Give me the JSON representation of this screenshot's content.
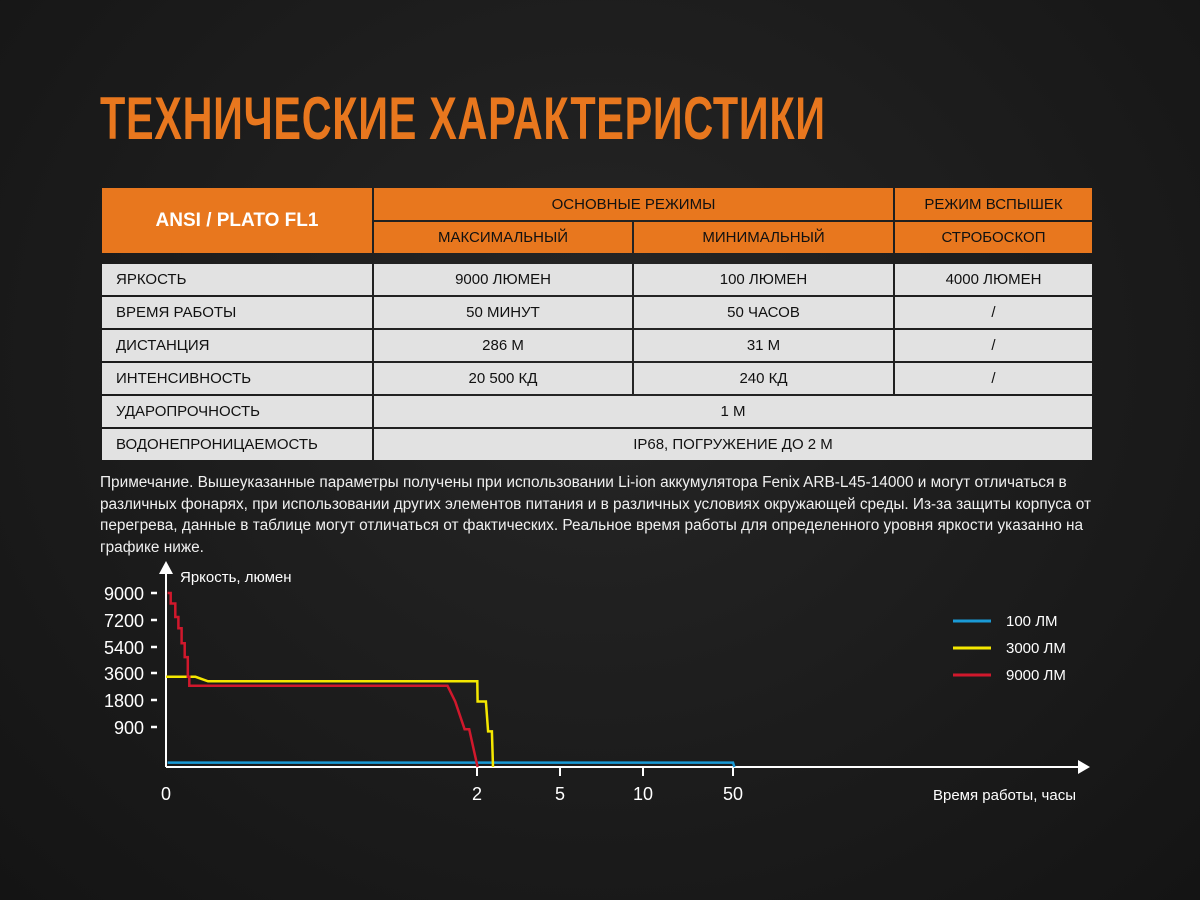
{
  "title": "ТЕХНИЧЕСКИЕ ХАРАКТЕРИСТИКИ",
  "table": {
    "brand": "ANSI / PLATO FL1",
    "group_main": "ОСНОВНЫЕ РЕЖИМЫ",
    "group_flash": "РЕЖИМ ВСПЫШЕК",
    "col_max": "МАКСИМАЛЬНЫЙ",
    "col_min": "МИНИМАЛЬНЫЙ",
    "col_strobe": "СТРОБОСКОП",
    "rows": [
      {
        "label": "ЯРКОСТЬ",
        "max": "9000 ЛЮМЕН",
        "min": "100 ЛЮМЕН",
        "strobe": "4000 ЛЮМЕН"
      },
      {
        "label": "ВРЕМЯ РАБОТЫ",
        "max": "50 МИНУТ",
        "min": "50 ЧАСОВ",
        "strobe": "/"
      },
      {
        "label": "ДИСТАНЦИЯ",
        "max": "286 М",
        "min": "31 М",
        "strobe": "/"
      },
      {
        "label": "ИНТЕНСИВНОСТЬ",
        "max": "20 500 КД",
        "min": "240 КД",
        "strobe": "/"
      },
      {
        "label": "УДАРОПРОЧНОСТЬ",
        "all": "1 М"
      },
      {
        "label": "ВОДОНЕПРОНИЦАЕМОСТЬ",
        "all": "IP68, ПОГРУЖЕНИЕ ДО 2 М"
      }
    ]
  },
  "note": "Примечание. Вышеуказанные параметры получены при использовании Li-ion аккумулятора Fenix ARB-L45-14000 и могут отличаться в различных фонарях, при использовании других элементов питания и в различных условиях окружающей среды. Из-за защиты корпуса от перегрева, данные в таблице могут отличаться от фактических. Реальное время работы для определенного уровня яркости указанно на графике ниже.",
  "colors": {
    "accent": "#e8771e",
    "blue": "#1a9ad6",
    "yellow": "#f5e800",
    "red": "#d0182c"
  },
  "chart_data": {
    "type": "line",
    "xlabel": "Время работы, часы",
    "ylabel": "Яркость, люмен",
    "x_ticks": [
      0,
      2,
      5,
      10,
      50
    ],
    "y_ticks": [
      900,
      1800,
      3600,
      5400,
      7200,
      9000
    ],
    "x_scale": "non-linear (piecewise)",
    "y_scale": "non-linear (piecewise)",
    "grid": false,
    "legend": "right",
    "series": [
      {
        "name": "100 ЛМ",
        "color": "#1a9ad6",
        "points": [
          [
            0.01,
            100
          ],
          [
            50,
            100
          ],
          [
            50.5,
            0
          ]
        ]
      },
      {
        "name": "3000 ЛМ",
        "color": "#f5e800",
        "points": [
          [
            0,
            3350
          ],
          [
            0.19,
            3350
          ],
          [
            0.27,
            3050
          ],
          [
            2.01,
            3050
          ],
          [
            2.02,
            1750
          ],
          [
            2.32,
            1750
          ],
          [
            2.4,
            800
          ],
          [
            2.54,
            800
          ],
          [
            2.58,
            0
          ]
        ]
      },
      {
        "name": "9000 ЛМ",
        "color": "#d0182c",
        "points": [
          [
            0.01,
            9000
          ],
          [
            0.03,
            9000
          ],
          [
            0.03,
            8300
          ],
          [
            0.06,
            8300
          ],
          [
            0.06,
            7400
          ],
          [
            0.08,
            7400
          ],
          [
            0.08,
            6650
          ],
          [
            0.1,
            6650
          ],
          [
            0.1,
            5650
          ],
          [
            0.12,
            5650
          ],
          [
            0.12,
            4700
          ],
          [
            0.14,
            4700
          ],
          [
            0.14,
            3350
          ],
          [
            0.15,
            3350
          ],
          [
            0.15,
            2750
          ],
          [
            1.81,
            2750
          ],
          [
            1.86,
            1750
          ],
          [
            1.92,
            850
          ],
          [
            1.95,
            850
          ],
          [
            2.02,
            0
          ]
        ]
      }
    ]
  }
}
